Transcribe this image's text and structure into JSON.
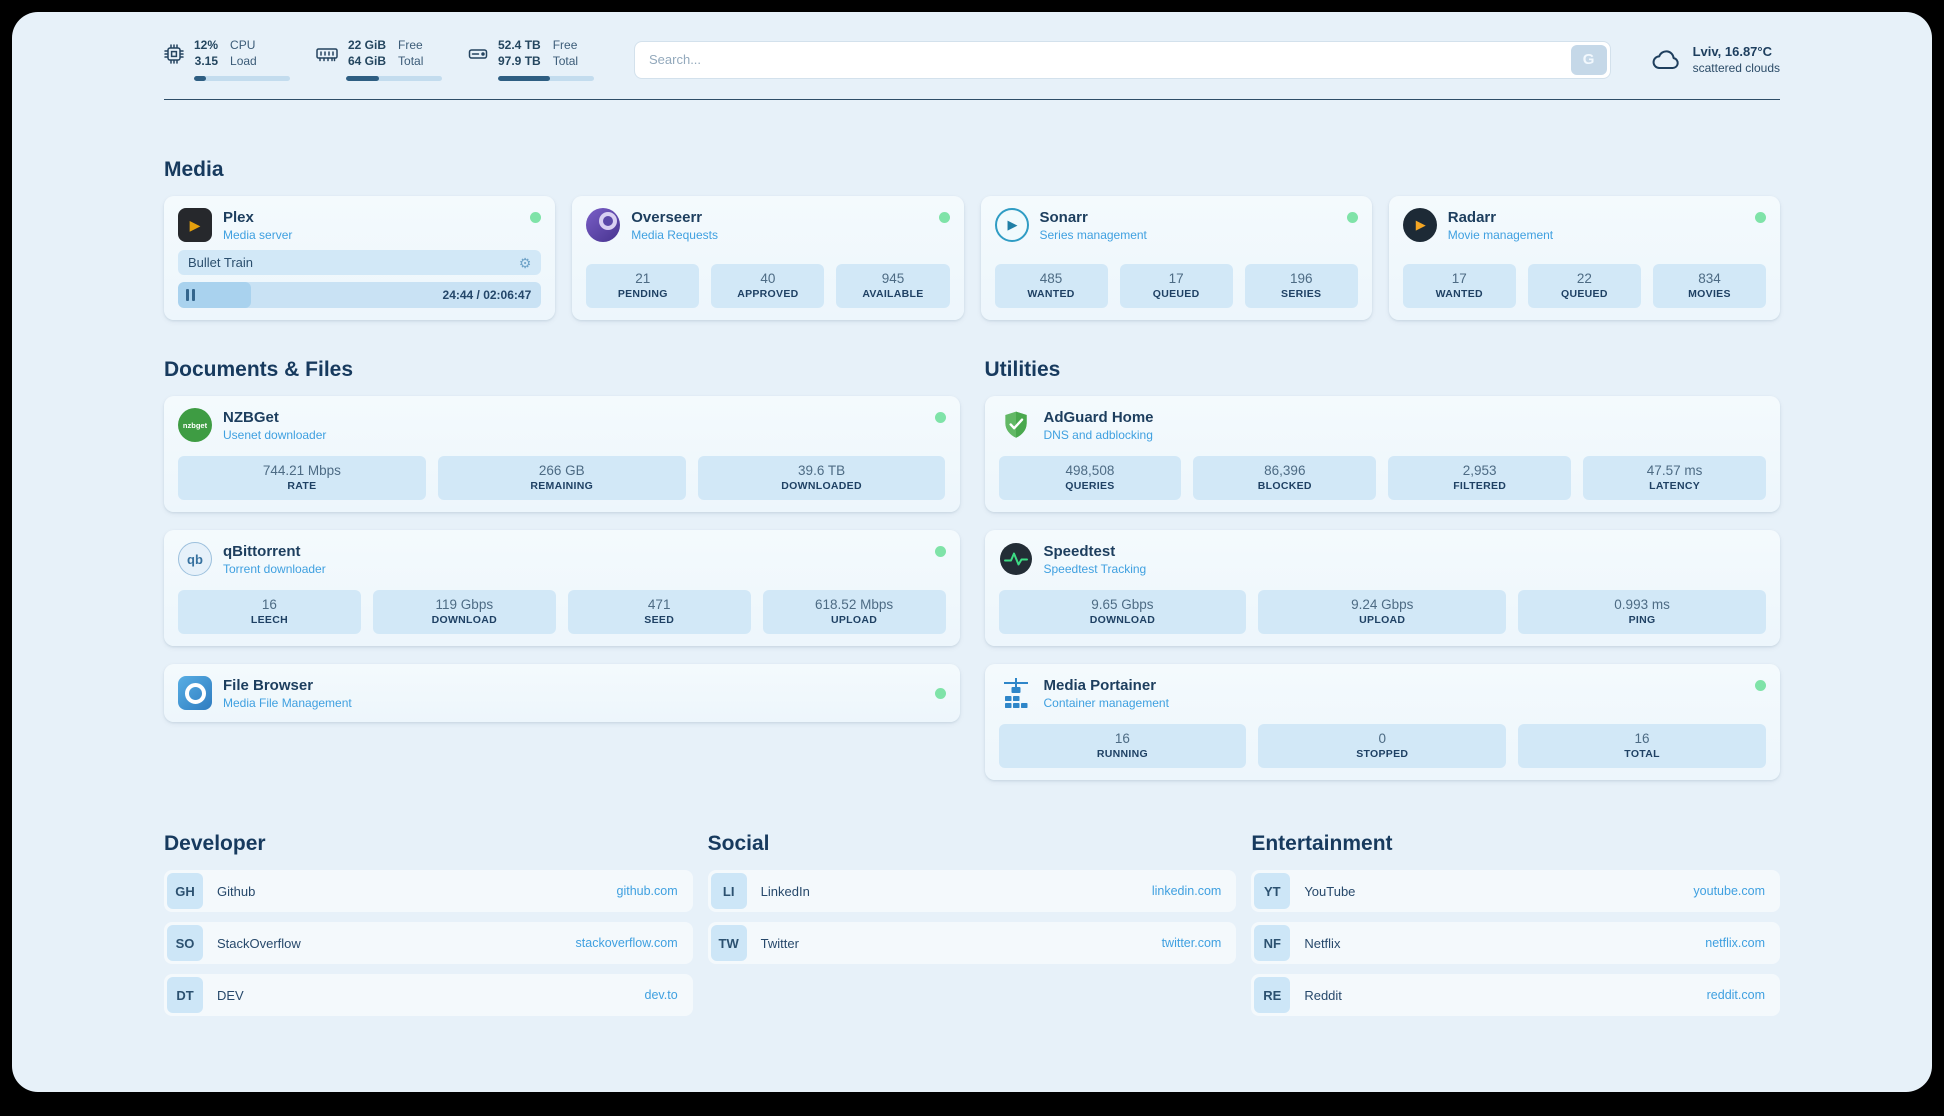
{
  "header": {
    "widgets": [
      {
        "icon": "cpu-icon",
        "values": [
          "12%",
          "3.15"
        ],
        "labels": [
          "CPU",
          "Load"
        ],
        "progress": 12
      },
      {
        "icon": "ram-icon",
        "values": [
          "22 GiB",
          "64 GiB"
        ],
        "labels": [
          "Free",
          "Total"
        ],
        "progress": 34
      },
      {
        "icon": "disk-icon",
        "values": [
          "52.4 TB",
          "97.9 TB"
        ],
        "labels": [
          "Free",
          "Total"
        ],
        "progress": 54
      }
    ],
    "search": {
      "placeholder": "Search...",
      "button_label": "G"
    },
    "weather": {
      "icon": "cloud-icon",
      "location": "Lviv, 16.87°C",
      "condition": "scattered clouds"
    }
  },
  "sections": {
    "media": {
      "title": "Media",
      "apps": [
        {
          "icon": "plex-icon",
          "name": "Plex",
          "subtitle": "Media server",
          "status": "online",
          "player": {
            "track": "Bullet Train",
            "time": "24:44 / 02:06:47",
            "progress": 20
          }
        },
        {
          "icon": "overseerr-icon",
          "name": "Overseerr",
          "subtitle": "Media Requests",
          "status": "online",
          "stats": [
            {
              "value": "21",
              "label": "PENDING"
            },
            {
              "value": "40",
              "label": "APPROVED"
            },
            {
              "value": "945",
              "label": "AVAILABLE"
            }
          ]
        },
        {
          "icon": "sonarr-icon",
          "name": "Sonarr",
          "subtitle": "Series management",
          "status": "online",
          "stats": [
            {
              "value": "485",
              "label": "WANTED"
            },
            {
              "value": "17",
              "label": "QUEUED"
            },
            {
              "value": "196",
              "label": "SERIES"
            }
          ]
        },
        {
          "icon": "radarr-icon",
          "name": "Radarr",
          "subtitle": "Movie management",
          "status": "online",
          "stats": [
            {
              "value": "17",
              "label": "WANTED"
            },
            {
              "value": "22",
              "label": "QUEUED"
            },
            {
              "value": "834",
              "label": "MOVIES"
            }
          ]
        }
      ]
    },
    "documents": {
      "title": "Documents & Files",
      "apps": [
        {
          "icon": "nzbget-icon",
          "name": "NZBGet",
          "subtitle": "Usenet downloader",
          "status": "online",
          "stats": [
            {
              "value": "744.21 Mbps",
              "label": "RATE"
            },
            {
              "value": "266 GB",
              "label": "REMAINING"
            },
            {
              "value": "39.6 TB",
              "label": "DOWNLOADED"
            }
          ]
        },
        {
          "icon": "qbittorrent-icon",
          "name": "qBittorrent",
          "subtitle": "Torrent downloader",
          "status": "online",
          "stats": [
            {
              "value": "16",
              "label": "LEECH"
            },
            {
              "value": "119 Gbps",
              "label": "DOWNLOAD"
            },
            {
              "value": "471",
              "label": "SEED"
            },
            {
              "value": "618.52 Mbps",
              "label": "UPLOAD"
            }
          ]
        },
        {
          "icon": "filebrowser-icon",
          "name": "File Browser",
          "subtitle": "Media File Management",
          "status": "online",
          "stats": []
        }
      ]
    },
    "utilities": {
      "title": "Utilities",
      "apps": [
        {
          "icon": "adguard-icon",
          "name": "AdGuard Home",
          "subtitle": "DNS and adblocking",
          "stats": [
            {
              "value": "498,508",
              "label": "QUERIES"
            },
            {
              "value": "86,396",
              "label": "BLOCKED"
            },
            {
              "value": "2,953",
              "label": "FILTERED"
            },
            {
              "value": "47.57 ms",
              "label": "LATENCY"
            }
          ]
        },
        {
          "icon": "speedtest-icon",
          "name": "Speedtest",
          "subtitle": "Speedtest Tracking",
          "stats": [
            {
              "value": "9.65 Gbps",
              "label": "DOWNLOAD"
            },
            {
              "value": "9.24 Gbps",
              "label": "UPLOAD"
            },
            {
              "value": "0.993 ms",
              "label": "PING"
            }
          ]
        },
        {
          "icon": "portainer-icon",
          "name": "Media Portainer",
          "subtitle": "Container management",
          "status": "online",
          "stats": [
            {
              "value": "16",
              "label": "RUNNING"
            },
            {
              "value": "0",
              "label": "STOPPED"
            },
            {
              "value": "16",
              "label": "TOTAL"
            }
          ]
        }
      ]
    },
    "links": [
      {
        "title": "Developer",
        "items": [
          {
            "abbr": "GH",
            "name": "Github",
            "url": "github.com"
          },
          {
            "abbr": "SO",
            "name": "StackOverflow",
            "url": "stackoverflow.com"
          },
          {
            "abbr": "DT",
            "name": "DEV",
            "url": "dev.to"
          }
        ]
      },
      {
        "title": "Social",
        "items": [
          {
            "abbr": "LI",
            "name": "LinkedIn",
            "url": "linkedin.com"
          },
          {
            "abbr": "TW",
            "name": "Twitter",
            "url": "twitter.com"
          }
        ]
      },
      {
        "title": "Entertainment",
        "items": [
          {
            "abbr": "YT",
            "name": "YouTube",
            "url": "youtube.com"
          },
          {
            "abbr": "NF",
            "name": "Netflix",
            "url": "netflix.com"
          },
          {
            "abbr": "RE",
            "name": "Reddit",
            "url": "reddit.com"
          }
        ]
      }
    ]
  },
  "colors": {
    "background": "#e7f1f9",
    "accent_blue": "#3fa0e0",
    "heading_navy": "#173a5e",
    "status_online_green": "#7fe3a8",
    "stat_tile_blue": "#d2e8f7",
    "progress_fill": "#2e5e82"
  }
}
